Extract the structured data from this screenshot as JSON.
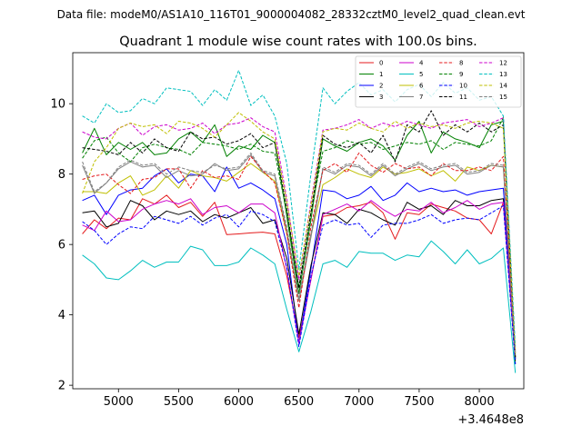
{
  "figure": {
    "suptitle": "Data file: modeM0/AS1A10_116T01_9000004082_28332cztM0_level2_quad_clean.evt"
  },
  "chart_data": {
    "type": "line",
    "title": "Quadrant 1 module wise count rates with 100.0s bins.",
    "xlabel": "",
    "ylabel": "",
    "x_offset_label": "+3.4648e8",
    "xlim": [
      4620,
      8370
    ],
    "ylim": [
      1.9,
      11.45
    ],
    "xticks": [
      5000,
      5500,
      6000,
      6500,
      7000,
      7500,
      8000
    ],
    "xtick_labels": [
      "5000",
      "5500",
      "6000",
      "6500",
      "7000",
      "7500",
      "8000"
    ],
    "yticks": [
      2,
      4,
      6,
      8,
      10
    ],
    "ytick_labels": [
      "2",
      "4",
      "6",
      "8",
      "10"
    ],
    "grid": false,
    "legend_position": "top-right",
    "x": [
      4700,
      4800,
      4900,
      5000,
      5100,
      5200,
      5300,
      5400,
      5500,
      5600,
      5700,
      5800,
      5900,
      6000,
      6100,
      6200,
      6300,
      6400,
      6500,
      6600,
      6700,
      6800,
      6900,
      7000,
      7100,
      7200,
      7300,
      7400,
      7500,
      7600,
      7700,
      7800,
      7900,
      8000,
      8100,
      8200,
      8300
    ],
    "series": [
      {
        "name": "0",
        "color": "#e41a1c",
        "dash": "solid",
        "values": [
          6.3,
          6.7,
          6.45,
          6.75,
          6.7,
          7.3,
          7.15,
          7.4,
          7.05,
          7.2,
          6.8,
          7.2,
          6.28,
          6.3,
          6.33,
          6.35,
          6.3,
          5.1,
          3.35,
          5.0,
          6.8,
          6.85,
          7.05,
          7.1,
          7.2,
          6.9,
          6.15,
          6.9,
          6.85,
          7.15,
          7.05,
          6.95,
          6.75,
          6.7,
          6.3,
          7.2,
          2.8
        ]
      },
      {
        "name": "1",
        "color": "#008000",
        "dash": "solid",
        "values": [
          8.6,
          9.3,
          8.55,
          8.9,
          8.7,
          8.9,
          8.55,
          8.6,
          9.0,
          9.2,
          8.9,
          9.4,
          8.5,
          8.8,
          8.7,
          9.1,
          8.9,
          6.8,
          4.6,
          6.7,
          9.0,
          8.8,
          8.65,
          8.9,
          9.0,
          8.8,
          8.4,
          9.1,
          9.5,
          8.6,
          9.2,
          9.0,
          8.9,
          8.75,
          9.4,
          9.5,
          2.6
        ]
      },
      {
        "name": "2",
        "color": "#0000ff",
        "dash": "solid",
        "values": [
          7.25,
          7.4,
          6.85,
          7.4,
          7.55,
          7.6,
          7.95,
          8.15,
          7.75,
          8.0,
          7.95,
          7.5,
          8.2,
          7.6,
          7.75,
          7.55,
          7.3,
          6.0,
          3.2,
          5.3,
          7.55,
          7.5,
          7.3,
          7.4,
          7.65,
          7.25,
          7.4,
          7.75,
          7.5,
          7.6,
          7.5,
          7.55,
          7.4,
          7.5,
          7.55,
          7.6,
          2.75
        ]
      },
      {
        "name": "3",
        "color": "#000000",
        "dash": "solid",
        "values": [
          6.9,
          6.95,
          6.5,
          6.6,
          7.25,
          7.1,
          6.7,
          6.95,
          6.85,
          6.95,
          6.65,
          6.85,
          6.75,
          6.9,
          7.05,
          6.6,
          6.7,
          5.6,
          3.45,
          5.4,
          6.9,
          6.85,
          6.6,
          7.0,
          6.9,
          6.7,
          6.55,
          7.2,
          7.0,
          7.1,
          6.85,
          7.25,
          7.1,
          7.1,
          7.25,
          7.3,
          2.7
        ]
      },
      {
        "name": "4",
        "color": "#cc00cc",
        "dash": "solid",
        "values": [
          6.55,
          6.4,
          6.95,
          6.65,
          6.7,
          7.0,
          7.15,
          7.25,
          7.15,
          7.3,
          6.85,
          7.05,
          7.1,
          6.9,
          7.15,
          7.15,
          6.9,
          5.3,
          3.2,
          5.0,
          6.85,
          7.0,
          7.15,
          6.95,
          7.25,
          7.0,
          6.8,
          7.0,
          6.95,
          7.2,
          6.9,
          7.05,
          7.25,
          7.0,
          7.15,
          7.2,
          2.75
        ]
      },
      {
        "name": "5",
        "color": "#00bfbf",
        "dash": "solid",
        "values": [
          5.7,
          5.45,
          5.05,
          5.0,
          5.25,
          5.55,
          5.35,
          5.5,
          5.5,
          5.95,
          5.85,
          5.4,
          5.4,
          5.5,
          5.9,
          5.7,
          5.45,
          4.15,
          2.95,
          4.1,
          5.45,
          5.55,
          5.35,
          5.8,
          5.75,
          5.75,
          5.55,
          5.7,
          5.65,
          6.1,
          5.8,
          5.45,
          5.85,
          5.45,
          5.6,
          5.9,
          2.35
        ]
      },
      {
        "name": "6",
        "color": "#bfbf00",
        "dash": "solid",
        "values": [
          7.5,
          7.5,
          7.45,
          7.75,
          7.95,
          7.4,
          7.55,
          7.95,
          7.6,
          8.1,
          7.95,
          7.9,
          7.8,
          8.05,
          8.3,
          8.05,
          7.8,
          6.3,
          4.4,
          6.25,
          7.7,
          7.9,
          8.15,
          8.0,
          7.9,
          8.2,
          8.0,
          8.05,
          8.15,
          7.95,
          8.1,
          7.8,
          8.2,
          8.1,
          8.25,
          8.2,
          2.8
        ]
      },
      {
        "name": "7",
        "color": "#808080",
        "dash": "solid",
        "values": [
          8.25,
          7.45,
          7.75,
          8.15,
          8.35,
          8.2,
          8.25,
          7.9,
          8.1,
          7.95,
          8.0,
          8.3,
          8.1,
          8.15,
          8.55,
          8.05,
          7.95,
          6.4,
          4.4,
          6.2,
          8.15,
          8.0,
          8.25,
          8.2,
          7.95,
          8.25,
          7.95,
          8.15,
          8.3,
          8.1,
          8.2,
          8.25,
          8.0,
          8.05,
          8.25,
          8.2,
          2.8
        ]
      },
      {
        "name": "8",
        "color": "#e41a1c",
        "dash": "dashed",
        "values": [
          7.85,
          7.95,
          8.0,
          7.7,
          7.45,
          7.85,
          7.9,
          8.15,
          8.15,
          7.6,
          8.1,
          7.9,
          7.95,
          7.85,
          8.5,
          8.1,
          7.75,
          6.3,
          4.2,
          6.5,
          8.1,
          8.3,
          8.05,
          8.6,
          8.25,
          8.05,
          8.3,
          8.15,
          8.2,
          7.95,
          8.3,
          8.1,
          8.1,
          8.2,
          8.1,
          8.5,
          2.9
        ]
      },
      {
        "name": "9",
        "color": "#008000",
        "dash": "dashed",
        "values": [
          8.45,
          8.95,
          9.05,
          8.6,
          8.35,
          8.75,
          8.85,
          8.75,
          8.7,
          8.55,
          8.9,
          8.85,
          8.8,
          8.7,
          8.85,
          8.65,
          8.6,
          6.9,
          4.8,
          6.9,
          8.65,
          8.75,
          8.95,
          8.85,
          8.9,
          8.7,
          8.8,
          8.9,
          8.85,
          8.95,
          8.7,
          8.9,
          8.85,
          8.8,
          8.95,
          9.6,
          2.75
        ]
      },
      {
        "name": "10",
        "color": "#0000ff",
        "dash": "dashed",
        "values": [
          6.65,
          6.4,
          6.0,
          6.3,
          6.5,
          6.45,
          6.8,
          6.7,
          6.6,
          6.8,
          6.55,
          6.75,
          6.85,
          6.5,
          6.95,
          6.85,
          6.65,
          5.35,
          3.1,
          5.1,
          6.55,
          6.7,
          6.55,
          6.6,
          6.2,
          6.55,
          6.6,
          6.6,
          6.7,
          6.85,
          6.6,
          6.7,
          6.75,
          6.7,
          6.9,
          7.1,
          2.6
        ]
      },
      {
        "name": "11",
        "color": "#000000",
        "dash": "dashed",
        "values": [
          8.75,
          8.7,
          8.65,
          8.55,
          8.9,
          8.6,
          9.0,
          8.75,
          8.65,
          9.2,
          9.0,
          9.05,
          8.85,
          8.95,
          9.15,
          8.75,
          8.9,
          7.0,
          4.75,
          6.9,
          9.1,
          8.85,
          8.75,
          8.9,
          8.6,
          9.1,
          8.35,
          9.4,
          9.2,
          9.8,
          9.1,
          9.4,
          9.2,
          9.45,
          9.2,
          9.4,
          2.8
        ]
      },
      {
        "name": "12",
        "color": "#cc00cc",
        "dash": "dashed",
        "values": [
          9.2,
          9.05,
          9.0,
          9.3,
          9.45,
          9.1,
          9.35,
          9.4,
          9.25,
          9.3,
          9.45,
          9.15,
          9.4,
          9.45,
          9.6,
          9.35,
          9.2,
          7.3,
          5.0,
          7.2,
          9.25,
          9.3,
          9.4,
          9.55,
          9.3,
          9.45,
          9.35,
          9.5,
          9.4,
          9.3,
          9.45,
          9.5,
          9.55,
          9.35,
          9.45,
          9.6,
          2.95
        ]
      },
      {
        "name": "13",
        "color": "#00bfbf",
        "dash": "dashed",
        "values": [
          9.65,
          9.45,
          10.0,
          9.75,
          9.8,
          10.15,
          10.0,
          10.45,
          10.4,
          10.35,
          9.95,
          10.4,
          10.1,
          10.95,
          9.95,
          10.25,
          9.65,
          8.3,
          5.3,
          8.0,
          10.45,
          10.0,
          10.35,
          10.6,
          10.25,
          10.4,
          10.05,
          10.4,
          10.55,
          10.2,
          10.6,
          10.3,
          10.45,
          10.1,
          10.2,
          9.65,
          3.1
        ]
      },
      {
        "name": "14",
        "color": "#bfbf00",
        "dash": "dashed",
        "values": [
          7.45,
          8.35,
          8.75,
          9.3,
          9.45,
          9.35,
          9.4,
          9.15,
          9.5,
          9.45,
          9.3,
          9.05,
          9.4,
          9.75,
          9.5,
          9.2,
          9.0,
          7.2,
          5.1,
          7.1,
          9.2,
          9.3,
          9.25,
          9.45,
          9.3,
          9.2,
          9.5,
          9.3,
          9.45,
          9.35,
          9.4,
          9.3,
          9.45,
          9.5,
          9.45,
          9.3,
          2.9
        ]
      },
      {
        "name": "15",
        "color": "#808080",
        "dash": "dashed",
        "values": [
          8.35,
          7.5,
          7.75,
          8.2,
          8.4,
          8.25,
          8.3,
          8.0,
          8.2,
          8.1,
          8.05,
          8.25,
          8.15,
          8.2,
          8.6,
          8.1,
          8.0,
          6.5,
          4.5,
          6.3,
          8.2,
          8.05,
          8.3,
          8.25,
          8.0,
          8.3,
          8.0,
          8.2,
          8.35,
          8.15,
          8.25,
          8.3,
          8.05,
          8.1,
          8.3,
          8.25,
          2.85
        ]
      }
    ]
  }
}
